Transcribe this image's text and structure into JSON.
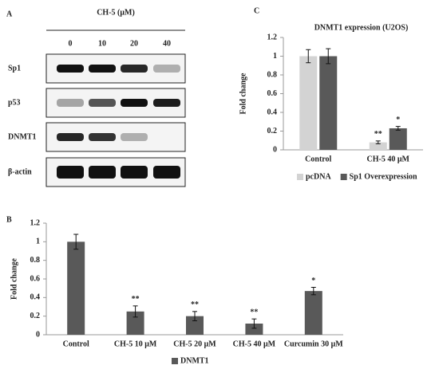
{
  "blot": {
    "panel": "A",
    "treatment": "CH-5 (μM)",
    "doses": [
      "0",
      "10",
      "20",
      "40"
    ],
    "rows": [
      "Sp1",
      "p53",
      "DNMT1",
      "β-actin"
    ]
  },
  "chart_data": [
    {
      "type": "bar",
      "panel": "B",
      "y_label": "Fold change",
      "categories": [
        "Control",
        "CH-5 10 μM",
        "CH-5 20 μM",
        "CH-5 40 μM",
        "Curcumin 30 μM"
      ],
      "series": [
        {
          "name": "DNMT1",
          "color": "#595959",
          "values": [
            1.0,
            0.25,
            0.2,
            0.12,
            0.47
          ],
          "errors": [
            0.08,
            0.06,
            0.05,
            0.05,
            0.04
          ],
          "significance": [
            null,
            "**",
            "**",
            "**",
            "*"
          ]
        }
      ],
      "ylim": [
        0,
        1.2
      ],
      "yticks": [
        0,
        0.2,
        0.4,
        0.6,
        0.8,
        1,
        1.2
      ]
    },
    {
      "type": "bar",
      "panel": "C",
      "title": "DNMT1 expression (U2OS)",
      "y_label": "Fold change",
      "categories": [
        "Control",
        "CH-5 40 μM"
      ],
      "series": [
        {
          "name": "pcDNA",
          "color": "#d3d3d3",
          "values": [
            1.0,
            0.08
          ],
          "errors": [
            0.07,
            0.015
          ],
          "significance": [
            null,
            "**"
          ]
        },
        {
          "name": "Sp1 Overexpression",
          "color": "#595959",
          "values": [
            1.0,
            0.23
          ],
          "errors": [
            0.08,
            0.02
          ],
          "significance": [
            null,
            "*"
          ]
        }
      ],
      "ylim": [
        0,
        1.2
      ],
      "yticks": [
        0,
        0.2,
        0.4,
        0.6,
        0.8,
        1,
        1.2
      ]
    }
  ]
}
